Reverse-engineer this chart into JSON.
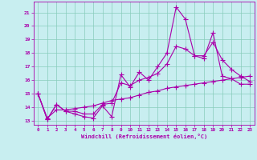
{
  "xlabel": "Windchill (Refroidissement éolien,°C)",
  "bg_color": "#c8eef0",
  "line_color": "#aa00aa",
  "grid_color": "#88ccbb",
  "xlim": [
    -0.5,
    23.5
  ],
  "ylim": [
    12.7,
    21.8
  ],
  "yticks": [
    13,
    14,
    15,
    16,
    17,
    18,
    19,
    20,
    21
  ],
  "xticks": [
    0,
    1,
    2,
    3,
    4,
    5,
    6,
    7,
    8,
    9,
    10,
    11,
    12,
    13,
    14,
    15,
    16,
    17,
    18,
    19,
    20,
    21,
    22,
    23
  ],
  "series1_x": [
    0,
    1,
    2,
    3,
    4,
    5,
    6,
    7,
    8,
    9,
    10,
    11,
    12,
    13,
    14,
    15,
    16,
    17,
    18,
    19,
    20,
    21,
    22,
    23
  ],
  "series1_y": [
    15.0,
    13.1,
    14.2,
    13.7,
    13.5,
    13.3,
    13.2,
    14.1,
    13.3,
    16.4,
    15.5,
    16.6,
    16.0,
    17.0,
    18.0,
    21.4,
    20.5,
    17.8,
    17.6,
    19.5,
    16.3,
    16.1,
    15.7,
    15.7
  ],
  "series2_x": [
    0,
    1,
    2,
    3,
    4,
    5,
    6,
    7,
    8,
    9,
    10,
    11,
    12,
    13,
    14,
    15,
    16,
    17,
    18,
    19,
    20,
    21,
    22,
    23
  ],
  "series2_y": [
    15.0,
    13.1,
    14.2,
    13.7,
    13.7,
    13.5,
    13.5,
    14.2,
    14.3,
    15.8,
    15.6,
    16.0,
    16.2,
    16.5,
    17.2,
    18.5,
    18.3,
    17.8,
    17.8,
    18.8,
    17.5,
    16.8,
    16.3,
    15.9
  ],
  "series3_x": [
    0,
    1,
    2,
    3,
    4,
    5,
    6,
    7,
    8,
    9,
    10,
    11,
    12,
    13,
    14,
    15,
    16,
    17,
    18,
    19,
    20,
    21,
    22,
    23
  ],
  "series3_y": [
    15.0,
    13.2,
    13.8,
    13.8,
    13.9,
    14.0,
    14.1,
    14.3,
    14.5,
    14.6,
    14.7,
    14.9,
    15.1,
    15.2,
    15.4,
    15.5,
    15.6,
    15.7,
    15.8,
    15.9,
    16.0,
    16.1,
    16.2,
    16.3
  ]
}
